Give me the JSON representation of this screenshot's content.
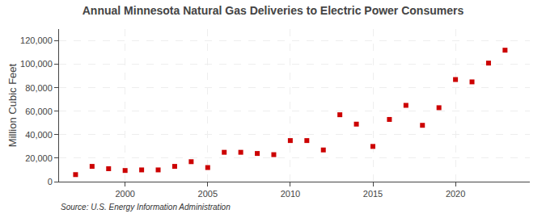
{
  "chart_data": {
    "type": "scatter",
    "title": "Annual Minnesota Natural Gas Deliveries to Electric Power Consumers",
    "ylabel": "Million Cubic Feet",
    "annotations": [
      "Source: U.S. Energy Information Administration"
    ],
    "x": [
      1997,
      1998,
      1999,
      2000,
      2001,
      2002,
      2003,
      2004,
      2005,
      2006,
      2007,
      2008,
      2009,
      2010,
      2011,
      2012,
      2013,
      2014,
      2015,
      2016,
      2017,
      2018,
      2019,
      2020,
      2021,
      2022,
      2023
    ],
    "values": [
      6000,
      13000,
      11000,
      9500,
      10000,
      10000,
      13000,
      17000,
      12000,
      25000,
      25000,
      24000,
      23000,
      35000,
      35000,
      27000,
      57000,
      49000,
      30000,
      53000,
      65000,
      48000,
      63000,
      87000,
      85000,
      101000,
      112000
    ],
    "color": "#cc0000",
    "marker": "square",
    "xlim": [
      1996,
      2024.5
    ],
    "xticks": [
      2000,
      2005,
      2010,
      2015,
      2020
    ],
    "ylim": [
      0,
      130000
    ],
    "yticks": [
      0,
      {
        "value": 20000,
        "label": "20,000"
      },
      {
        "value": 40000,
        "label": "40,000"
      },
      {
        "value": 60000,
        "label": "60,000"
      },
      {
        "value": 80000,
        "label": "80,000"
      },
      {
        "value": 100000,
        "label": "100,000"
      },
      {
        "value": 120000,
        "label": "120,000"
      }
    ],
    "grid": true
  }
}
